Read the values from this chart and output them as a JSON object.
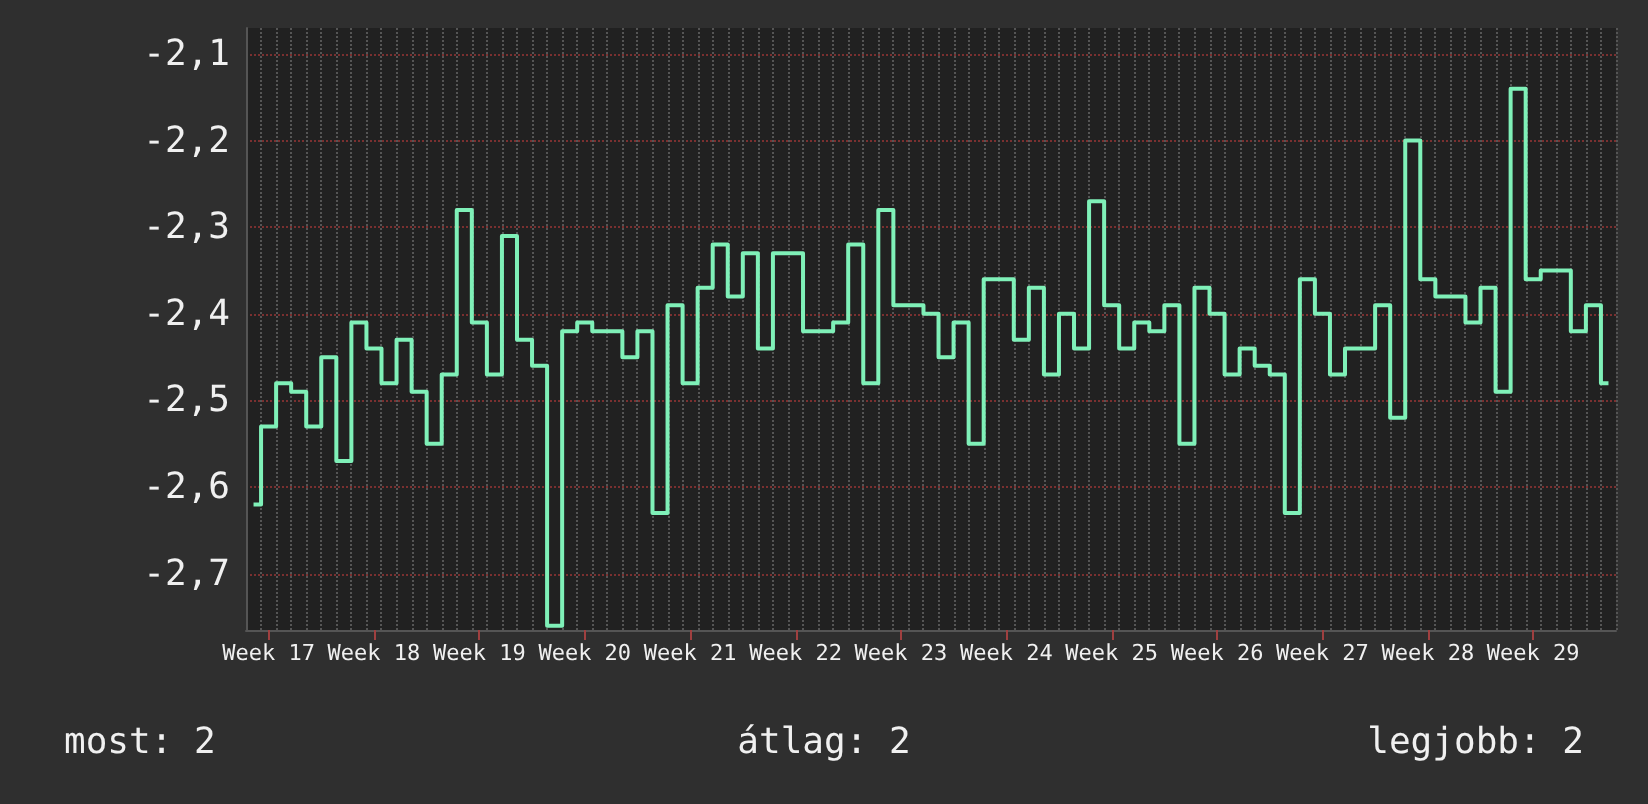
{
  "chart_data": {
    "type": "step",
    "color": "#7ff0b8",
    "marker": "none",
    "grid": true,
    "categories": [
      null,
      "Week 17",
      null,
      null,
      null,
      null,
      null,
      null,
      "Week 18",
      null,
      null,
      null,
      null,
      null,
      null,
      "Week 19",
      null,
      null,
      null,
      null,
      null,
      null,
      "Week 20",
      null,
      null,
      null,
      null,
      null,
      null,
      "Week 21",
      null,
      null,
      null,
      null,
      null,
      null,
      "Week 22",
      null,
      null,
      null,
      null,
      null,
      null,
      "Week 23",
      null,
      null,
      null,
      null,
      null,
      null,
      "Week 24",
      null,
      null,
      null,
      null,
      null,
      null,
      "Week 25",
      null,
      null,
      null,
      null,
      null,
      null,
      "Week 26",
      null,
      null,
      null,
      null,
      null,
      null,
      "Week 27",
      null,
      null,
      null,
      null,
      null,
      null,
      "Week 28",
      null,
      null,
      null,
      null,
      null,
      null,
      "Week 29",
      null,
      null,
      null,
      null,
      null
    ],
    "values": [
      -2.62,
      -2.53,
      -2.48,
      -2.49,
      -2.53,
      -2.45,
      -2.57,
      -2.41,
      -2.44,
      -2.48,
      -2.43,
      -2.49,
      -2.55,
      -2.47,
      -2.28,
      -2.41,
      -2.47,
      -2.31,
      -2.43,
      -2.46,
      -2.76,
      -2.42,
      -2.41,
      -2.42,
      -2.42,
      -2.45,
      -2.42,
      -2.63,
      -2.39,
      -2.48,
      -2.37,
      -2.32,
      -2.38,
      -2.33,
      -2.44,
      -2.33,
      -2.33,
      -2.42,
      -2.42,
      -2.41,
      -2.32,
      -2.48,
      -2.28,
      -2.39,
      -2.39,
      -2.4,
      -2.45,
      -2.41,
      -2.55,
      -2.36,
      -2.36,
      -2.43,
      -2.37,
      -2.47,
      -2.4,
      -2.44,
      -2.27,
      -2.39,
      -2.44,
      -2.41,
      -2.42,
      -2.39,
      -2.55,
      -2.37,
      -2.4,
      -2.47,
      -2.44,
      -2.46,
      -2.47,
      -2.63,
      -2.36,
      -2.4,
      -2.47,
      -2.44,
      -2.44,
      -2.39,
      -2.52,
      -2.2,
      -2.36,
      -2.38,
      -2.38,
      -2.41,
      -2.37,
      -2.49,
      -2.14,
      -2.36,
      -2.35,
      -2.35,
      -2.42,
      -2.39,
      -2.48
    ],
    "ylim": [
      -2.765,
      -2.07
    ],
    "yticks": [
      {
        "value": -2.7,
        "label": "-2,7"
      },
      {
        "value": -2.6,
        "label": "-2,6"
      },
      {
        "value": -2.5,
        "label": "-2,5"
      },
      {
        "value": -2.4,
        "label": "-2,4"
      },
      {
        "value": -2.3,
        "label": "-2,3"
      },
      {
        "value": -2.2,
        "label": "-2,2"
      },
      {
        "value": -2.1,
        "label": "-2,1"
      }
    ],
    "annotations": [
      "most: 2",
      "átlag: 2",
      "legjobb: 2"
    ]
  }
}
